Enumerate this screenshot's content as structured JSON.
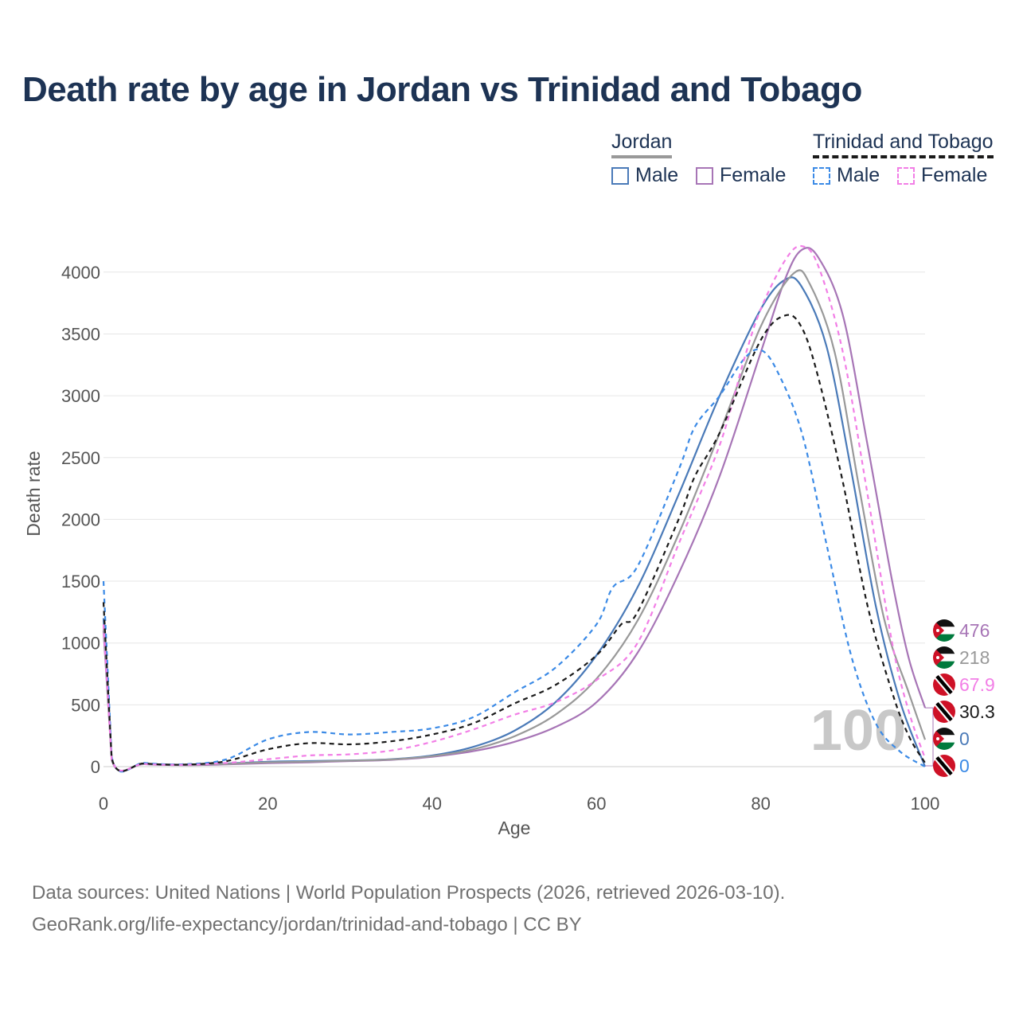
{
  "title": "Death rate by age in Jordan vs Trinidad and Tobago",
  "legend": {
    "groups": [
      {
        "name": "Jordan",
        "line_color": "#999999",
        "line_style": "solid",
        "items": [
          {
            "label": "Male",
            "color": "#4a7ab8",
            "style": "solid"
          },
          {
            "label": "Female",
            "color": "#a775b6",
            "style": "solid"
          }
        ]
      },
      {
        "name": "Trinidad and Tobago",
        "line_color": "#1a1a1a",
        "line_style": "dashed",
        "items": [
          {
            "label": "Male",
            "color": "#3b8ae6",
            "style": "dashed"
          },
          {
            "label": "Female",
            "color": "#f27ee6",
            "style": "dashed"
          }
        ]
      }
    ]
  },
  "big_age_label": "100",
  "footer": {
    "line1": "Data sources: United Nations | World Population Prospects (2026, retrieved 2026-03-10).",
    "line2": "GeoRank.org/life-expectancy/jordan/trinidad-and-tobago | CC BY"
  },
  "end_labels": [
    {
      "text": "476",
      "color": "#a775b6",
      "flag": "jordan-flag-icon"
    },
    {
      "text": "218",
      "color": "#999999",
      "flag": "jordan-flag-icon"
    },
    {
      "text": "67.9",
      "color": "#f27ee6",
      "flag": "trinidad-flag-icon"
    },
    {
      "text": "30.3",
      "color": "#1a1a1a",
      "flag": "trinidad-flag-icon"
    },
    {
      "text": "0",
      "color": "#4a7ab8",
      "flag": "jordan-flag-icon"
    },
    {
      "text": "0",
      "color": "#3b8ae6",
      "flag": "trinidad-flag-icon"
    }
  ],
  "chart_data": {
    "type": "line",
    "title": "Death rate by age in Jordan vs Trinidad and Tobago",
    "xlabel": "Age",
    "ylabel": "Death rate",
    "xlim": [
      0,
      100
    ],
    "ylim": [
      0,
      4200
    ],
    "xticks": [
      0,
      20,
      40,
      60,
      80,
      100
    ],
    "yticks": [
      0,
      500,
      1000,
      1500,
      2000,
      2500,
      3000,
      3500,
      4000
    ],
    "grid": true,
    "series": [
      {
        "name": "Jordan Male",
        "color": "#4a7ab8",
        "dash": "none",
        "width": 2.2,
        "points": [
          [
            0,
            1200
          ],
          [
            1,
            60
          ],
          [
            5,
            25
          ],
          [
            10,
            15
          ],
          [
            15,
            25
          ],
          [
            20,
            40
          ],
          [
            25,
            45
          ],
          [
            30,
            50
          ],
          [
            35,
            60
          ],
          [
            40,
            90
          ],
          [
            45,
            160
          ],
          [
            50,
            290
          ],
          [
            55,
            520
          ],
          [
            60,
            900
          ],
          [
            65,
            1450
          ],
          [
            70,
            2200
          ],
          [
            75,
            3000
          ],
          [
            80,
            3700
          ],
          [
            83,
            3940
          ],
          [
            85,
            3880
          ],
          [
            88,
            3400
          ],
          [
            91,
            2400
          ],
          [
            94,
            1300
          ],
          [
            97,
            520
          ],
          [
            100,
            0
          ]
        ]
      },
      {
        "name": "Jordan Female",
        "color": "#a775b6",
        "dash": "none",
        "width": 2.2,
        "points": [
          [
            0,
            1100
          ],
          [
            1,
            55
          ],
          [
            5,
            20
          ],
          [
            10,
            12
          ],
          [
            15,
            18
          ],
          [
            20,
            28
          ],
          [
            25,
            35
          ],
          [
            30,
            45
          ],
          [
            35,
            55
          ],
          [
            40,
            80
          ],
          [
            45,
            125
          ],
          [
            50,
            200
          ],
          [
            55,
            320
          ],
          [
            60,
            520
          ],
          [
            65,
            920
          ],
          [
            70,
            1560
          ],
          [
            75,
            2350
          ],
          [
            80,
            3350
          ],
          [
            83,
            3950
          ],
          [
            85,
            4180
          ],
          [
            87,
            4120
          ],
          [
            90,
            3650
          ],
          [
            93,
            2600
          ],
          [
            96,
            1500
          ],
          [
            98,
            880
          ],
          [
            100,
            476
          ]
        ]
      },
      {
        "name": "Jordan Both sexes",
        "color": "#999999",
        "dash": "none",
        "width": 2.2,
        "points": [
          [
            0,
            1150
          ],
          [
            1,
            58
          ],
          [
            5,
            22
          ],
          [
            10,
            14
          ],
          [
            15,
            22
          ],
          [
            20,
            35
          ],
          [
            25,
            40
          ],
          [
            30,
            48
          ],
          [
            35,
            58
          ],
          [
            40,
            85
          ],
          [
            45,
            140
          ],
          [
            50,
            245
          ],
          [
            55,
            420
          ],
          [
            60,
            710
          ],
          [
            65,
            1180
          ],
          [
            70,
            1880
          ],
          [
            75,
            2700
          ],
          [
            80,
            3560
          ],
          [
            84,
            3990
          ],
          [
            86,
            3900
          ],
          [
            89,
            3350
          ],
          [
            92,
            2250
          ],
          [
            95,
            1200
          ],
          [
            98,
            600
          ],
          [
            100,
            218
          ]
        ]
      },
      {
        "name": "Trinidad and Tobago Male",
        "color": "#3b8ae6",
        "dash": "6,5",
        "width": 2.2,
        "points": [
          [
            0,
            1500
          ],
          [
            1,
            80
          ],
          [
            5,
            30
          ],
          [
            10,
            20
          ],
          [
            15,
            60
          ],
          [
            20,
            220
          ],
          [
            25,
            280
          ],
          [
            30,
            260
          ],
          [
            35,
            280
          ],
          [
            40,
            310
          ],
          [
            45,
            400
          ],
          [
            50,
            600
          ],
          [
            55,
            800
          ],
          [
            60,
            1150
          ],
          [
            62,
            1450
          ],
          [
            65,
            1620
          ],
          [
            70,
            2400
          ],
          [
            72,
            2750
          ],
          [
            75,
            3000
          ],
          [
            78,
            3300
          ],
          [
            80,
            3370
          ],
          [
            82,
            3200
          ],
          [
            85,
            2700
          ],
          [
            88,
            1800
          ],
          [
            91,
            900
          ],
          [
            94,
            350
          ],
          [
            97,
            120
          ],
          [
            100,
            0
          ]
        ]
      },
      {
        "name": "Trinidad and Tobago Female",
        "color": "#f27ee6",
        "dash": "6,5",
        "width": 2.2,
        "points": [
          [
            0,
            1150
          ],
          [
            1,
            60
          ],
          [
            5,
            22
          ],
          [
            10,
            15
          ],
          [
            15,
            30
          ],
          [
            20,
            60
          ],
          [
            25,
            90
          ],
          [
            30,
            100
          ],
          [
            35,
            130
          ],
          [
            40,
            200
          ],
          [
            45,
            300
          ],
          [
            50,
            420
          ],
          [
            55,
            520
          ],
          [
            60,
            700
          ],
          [
            65,
            1000
          ],
          [
            70,
            1800
          ],
          [
            75,
            2600
          ],
          [
            78,
            3300
          ],
          [
            80,
            3700
          ],
          [
            83,
            4100
          ],
          [
            85,
            4210
          ],
          [
            87,
            4050
          ],
          [
            90,
            3350
          ],
          [
            93,
            2200
          ],
          [
            96,
            1000
          ],
          [
            98,
            450
          ],
          [
            100,
            67.9
          ]
        ]
      },
      {
        "name": "Trinidad and Tobago Both sexes",
        "color": "#1a1a1a",
        "dash": "6,5",
        "width": 2.2,
        "points": [
          [
            0,
            1330
          ],
          [
            1,
            70
          ],
          [
            5,
            26
          ],
          [
            10,
            17
          ],
          [
            15,
            45
          ],
          [
            20,
            140
          ],
          [
            25,
            190
          ],
          [
            30,
            180
          ],
          [
            35,
            205
          ],
          [
            40,
            260
          ],
          [
            45,
            350
          ],
          [
            50,
            510
          ],
          [
            55,
            660
          ],
          [
            60,
            900
          ],
          [
            63,
            1150
          ],
          [
            65,
            1250
          ],
          [
            70,
            2000
          ],
          [
            72,
            2350
          ],
          [
            75,
            2700
          ],
          [
            80,
            3450
          ],
          [
            83,
            3650
          ],
          [
            85,
            3550
          ],
          [
            87,
            3150
          ],
          [
            90,
            2300
          ],
          [
            93,
            1300
          ],
          [
            96,
            600
          ],
          [
            98,
            250
          ],
          [
            100,
            30.3
          ]
        ]
      }
    ]
  }
}
